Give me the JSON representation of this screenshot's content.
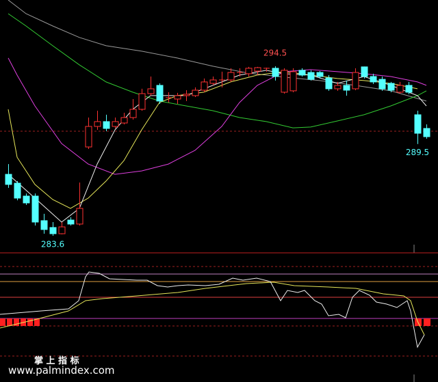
{
  "chart_data": {
    "type": "candlestick",
    "ylim": [
      282.72,
      298.76
    ],
    "up_color": "#ff3232",
    "down_color": "#54ffff",
    "open": [
      287.55,
      286.98,
      286.15,
      286.15,
      284.57,
      284.13,
      283.73,
      284.61,
      284.35,
      289.31,
      290.63,
      290.94,
      290.63,
      290.85,
      291.2,
      291.73,
      292.74,
      293.27,
      292.48,
      292.39,
      292.61,
      292.61,
      292.96,
      293.4,
      293.62,
      293.62,
      294.1,
      294.02,
      294.19,
      294.37,
      294.37,
      292.83,
      292.92,
      294.24,
      294.1,
      294.1,
      293.75,
      293.05,
      293.27,
      293.05,
      294.46,
      293.84,
      293.66,
      293.4,
      292.83,
      293.27,
      291.38,
      290.5
    ],
    "high": [
      288.21,
      287.12,
      286.32,
      286.32,
      285.01,
      284.48,
      284.48,
      284.79,
      287.02,
      291.2,
      291.64,
      291.38,
      291.2,
      291.51,
      292.39,
      293.05,
      293.84,
      293.4,
      292.83,
      292.79,
      292.96,
      293.14,
      293.71,
      293.84,
      294.15,
      294.37,
      294.37,
      294.46,
      294.46,
      294.41,
      294.5,
      294.37,
      294.37,
      294.37,
      294.24,
      294.19,
      293.93,
      293.49,
      293.58,
      294.37,
      294.48,
      294.02,
      293.84,
      293.49,
      293.49,
      293.49,
      291.64,
      290.76
    ],
    "low": [
      286.68,
      285.88,
      285.58,
      284.26,
      283.73,
      283.6,
      283.69,
      284.26,
      284.26,
      289.18,
      290.41,
      290.32,
      290.5,
      290.76,
      291.07,
      291.64,
      292.61,
      292.08,
      292.17,
      292.08,
      292.26,
      292.52,
      292.83,
      293.27,
      293.14,
      293.49,
      293.84,
      293.84,
      293.93,
      294.15,
      293.58,
      292.74,
      292.83,
      293.84,
      293.58,
      293.71,
      292.92,
      292.92,
      292.61,
      292.96,
      293.71,
      293.36,
      292.92,
      292.83,
      292.74,
      292.7,
      289.5,
      289.84
    ],
    "close": [
      286.9,
      286.02,
      285.71,
      284.48,
      284.0,
      283.73,
      284.17,
      284.35,
      285.36,
      290.63,
      290.94,
      290.5,
      290.94,
      291.2,
      291.73,
      292.74,
      293.05,
      292.26,
      292.48,
      292.61,
      292.7,
      292.96,
      293.49,
      293.62,
      293.62,
      294.1,
      294.1,
      294.37,
      294.41,
      294.37,
      293.84,
      294.24,
      294.15,
      293.93,
      293.66,
      293.84,
      293.05,
      293.27,
      292.96,
      294.1,
      293.84,
      293.49,
      293.05,
      292.96,
      293.27,
      292.83,
      290.19,
      289.97
    ],
    "annotations": [
      294.5,
      283.6,
      289.5
    ],
    "annotation_colors": [
      "#ff5050",
      "#54ffff",
      "#54ffff"
    ],
    "lines": [
      {
        "color": "#9a9a9a",
        "x": [
          0,
          2,
          5,
          8,
          11,
          15,
          19,
          23,
          27,
          31,
          35,
          39,
          43,
          47
        ],
        "values": [
          298.76,
          297.88,
          297.09,
          296.35,
          295.82,
          295.47,
          295.03,
          294.5,
          294.06,
          293.8,
          293.58,
          293.27,
          292.92,
          292.26
        ]
      },
      {
        "color": "#33cc33",
        "x": [
          0,
          2,
          5,
          8,
          11,
          14,
          17,
          20,
          23,
          26,
          29,
          32,
          34,
          37,
          40,
          43,
          46,
          47
        ],
        "values": [
          297.88,
          297.09,
          295.82,
          294.59,
          293.49,
          292.83,
          292.26,
          291.95,
          291.64,
          291.2,
          290.94,
          290.54,
          290.59,
          290.98,
          291.38,
          291.95,
          292.61,
          292.92
        ]
      },
      {
        "color": "#e040e0",
        "x": [
          0,
          1,
          3,
          6,
          9,
          12,
          15,
          18,
          21,
          24,
          26,
          28,
          31,
          34,
          37,
          40,
          43,
          46,
          47
        ],
        "values": [
          295.03,
          293.93,
          291.95,
          289.53,
          288.21,
          287.55,
          287.77,
          288.21,
          289.09,
          290.63,
          292.17,
          293.27,
          294.15,
          294.28,
          294.15,
          294.02,
          293.84,
          293.49,
          293.27
        ]
      },
      {
        "color": "#e8e85a",
        "x": [
          0,
          1,
          3,
          5,
          7,
          9,
          11,
          13,
          15,
          17,
          19,
          22,
          25,
          28,
          31,
          34,
          37,
          40,
          43,
          46
        ],
        "values": [
          291.73,
          288.65,
          286.9,
          285.93,
          285.36,
          286.02,
          287.12,
          288.43,
          290.41,
          292.17,
          292.61,
          292.83,
          293.49,
          293.93,
          294.15,
          293.93,
          293.71,
          293.58,
          293.4,
          293.05
        ]
      },
      {
        "color": "#f0f0f0",
        "x": [
          0,
          3,
          6,
          8,
          10,
          12,
          14,
          16,
          18,
          20,
          23,
          26,
          29,
          31,
          34,
          37,
          40,
          43,
          46,
          47
        ],
        "values": [
          287.55,
          286.02,
          284.48,
          285.36,
          288.21,
          290.41,
          291.73,
          292.61,
          292.61,
          292.61,
          293.27,
          293.93,
          294.24,
          294.02,
          293.93,
          293.4,
          293.84,
          293.27,
          292.61,
          291.95
        ]
      }
    ]
  },
  "watermark": {
    "title": "掌 上 指 标",
    "url": "www.palmindex.com"
  }
}
